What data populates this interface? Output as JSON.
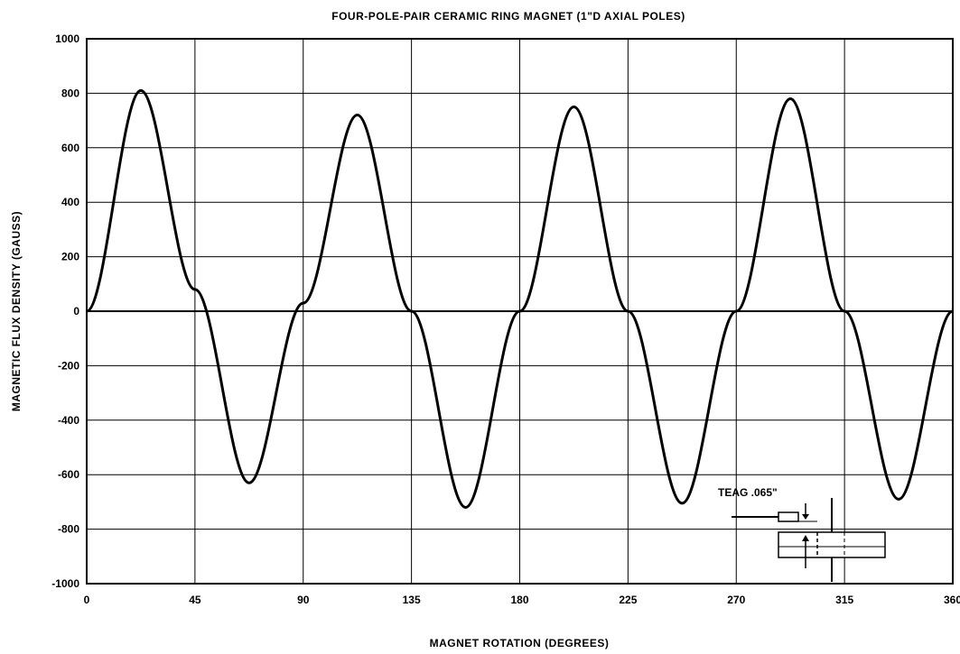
{
  "chart_data": {
    "type": "line",
    "title": "FOUR-POLE-PAIR CERAMIC RING MAGNET (1\"D AXIAL POLES)",
    "xlabel": "MAGNET ROTATION (DEGREES)",
    "ylabel": "MAGNETIC FLUX DENSITY (GAUSS)",
    "xlim": [
      0,
      360
    ],
    "ylim": [
      -1000,
      1000
    ],
    "xticks": [
      0,
      45,
      90,
      135,
      180,
      225,
      270,
      315,
      360
    ],
    "xtick_labels": [
      "0",
      "45",
      "90",
      "135",
      "180",
      "225",
      "270",
      "315",
      "360"
    ],
    "yticks": [
      1000,
      800,
      600,
      400,
      200,
      0,
      -200,
      -400,
      -600,
      -800,
      -1000
    ],
    "ytick_labels": [
      "1000",
      "800",
      "600",
      "400",
      "200",
      "0",
      "-200",
      "-400",
      "-600",
      "-800",
      "-1000"
    ],
    "grid": true,
    "series": [
      {
        "values_x": [
          0,
          22.5,
          45,
          67.5,
          90,
          112.5,
          135,
          157.5,
          180,
          202.5,
          225,
          247.5,
          270,
          292.5,
          315,
          337.5,
          360
        ],
        "values_y": [
          0,
          810,
          80,
          -630,
          30,
          720,
          0,
          -720,
          0,
          750,
          0,
          -705,
          0,
          780,
          0,
          -690,
          0
        ]
      }
    ],
    "annotation": "TEAG .065\""
  }
}
